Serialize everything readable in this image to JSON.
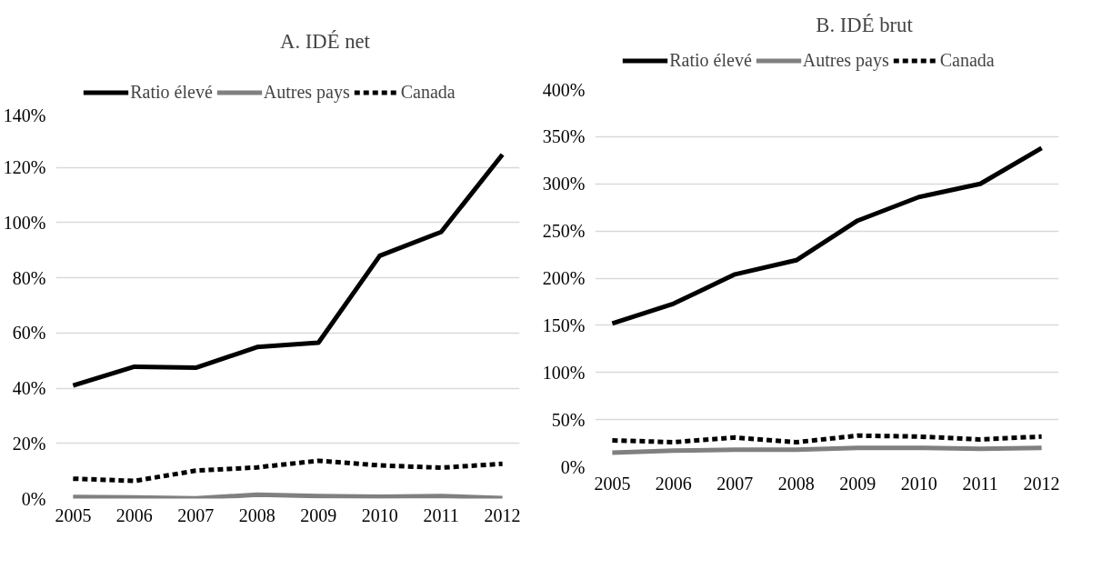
{
  "chart_data": [
    {
      "type": "line",
      "title": "A. IDÉ net",
      "x": [
        2005,
        2006,
        2007,
        2008,
        2009,
        2010,
        2011,
        2012
      ],
      "xlim": [
        2005,
        2012
      ],
      "xticks": [
        2005,
        2006,
        2007,
        2008,
        2009,
        2010,
        2011,
        2012
      ],
      "ylim": [
        0,
        140
      ],
      "yticks": [
        {
          "value": 0,
          "label": "0%"
        },
        {
          "value": 20,
          "label": "20%"
        },
        {
          "value": 40,
          "label": "40%"
        },
        {
          "value": 60,
          "label": "60%"
        },
        {
          "value": 80,
          "label": "80%"
        },
        {
          "value": 100,
          "label": "100%"
        },
        {
          "value": 120,
          "label": "120%"
        },
        {
          "value": 140,
          "label": "140%"
        }
      ],
      "grid": "y",
      "legend": "top",
      "series": [
        {
          "name": "Ratio élevé",
          "color": "#000000",
          "line_style": "solid",
          "values": [
            41,
            47.8,
            47.4,
            54.9,
            56.5,
            88,
            96.6,
            124.7
          ]
        },
        {
          "name": "Autres pays",
          "color": "#808080",
          "line_style": "solid",
          "values": [
            0.6,
            0.4,
            0.1,
            1.4,
            0.9,
            0.7,
            0.9,
            0.2
          ]
        },
        {
          "name": "Canada",
          "color": "#000000",
          "line_style": "dashed",
          "values": [
            7.2,
            6.4,
            10.1,
            11.3,
            13.7,
            12,
            11.2,
            12.6
          ]
        }
      ]
    },
    {
      "type": "line",
      "title": "B. IDÉ brut",
      "x": [
        2005,
        2006,
        2007,
        2008,
        2009,
        2010,
        2011,
        2012
      ],
      "xlim": [
        2005,
        2012
      ],
      "xticks": [
        2005,
        2006,
        2007,
        2008,
        2009,
        2010,
        2011,
        2012
      ],
      "ylim": [
        0,
        400
      ],
      "yticks": [
        {
          "value": 0,
          "label": "0%"
        },
        {
          "value": 50,
          "label": "50%"
        },
        {
          "value": 100,
          "label": "100%"
        },
        {
          "value": 150,
          "label": "150%"
        },
        {
          "value": 200,
          "label": "200%"
        },
        {
          "value": 250,
          "label": "250%"
        },
        {
          "value": 300,
          "label": "300%"
        },
        {
          "value": 350,
          "label": "350%"
        },
        {
          "value": 400,
          "label": "400%"
        }
      ],
      "grid": "y",
      "legend": "top",
      "series": [
        {
          "name": "Ratio élevé",
          "color": "#000000",
          "line_style": "solid",
          "values": [
            152,
            173,
            204,
            219,
            261,
            286,
            300,
            338
          ]
        },
        {
          "name": "Autres pays",
          "color": "#808080",
          "line_style": "solid",
          "values": [
            15,
            17,
            18,
            18,
            20,
            20,
            19,
            20
          ]
        },
        {
          "name": "Canada",
          "color": "#000000",
          "line_style": "dashed",
          "values": [
            28,
            26,
            31,
            26,
            33,
            32,
            29,
            32
          ]
        }
      ]
    }
  ]
}
